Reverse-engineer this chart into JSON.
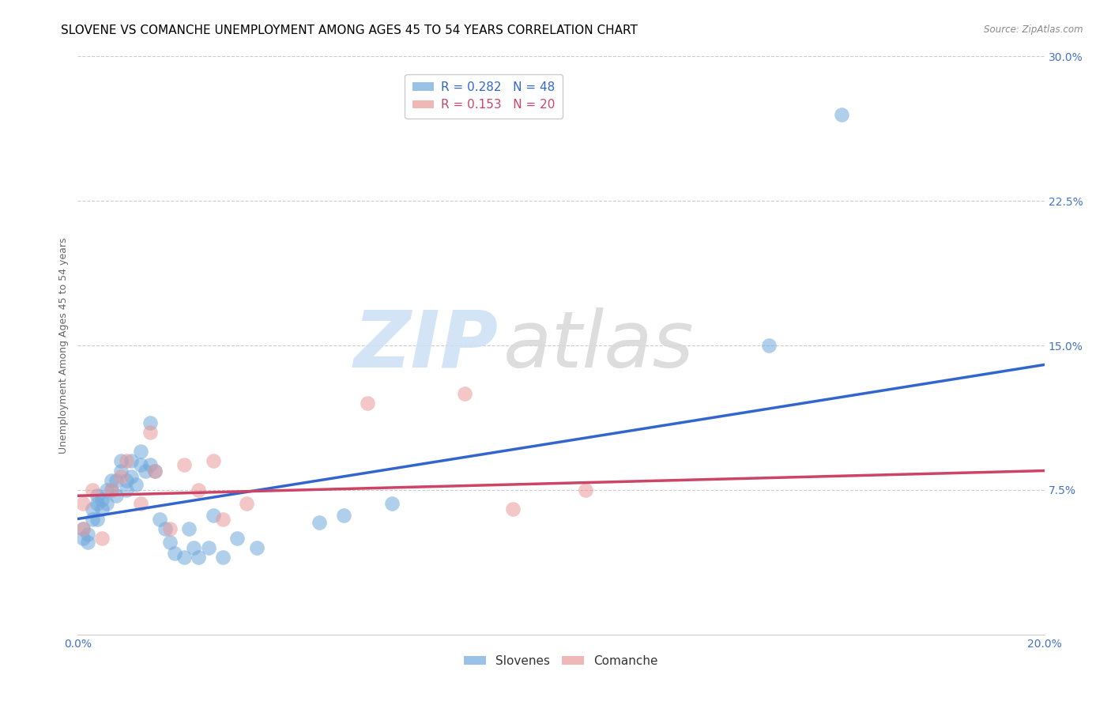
{
  "title": "SLOVENE VS COMANCHE UNEMPLOYMENT AMONG AGES 45 TO 54 YEARS CORRELATION CHART",
  "source": "Source: ZipAtlas.com",
  "ylabel": "Unemployment Among Ages 45 to 54 years",
  "xlim": [
    0.0,
    0.2
  ],
  "ylim": [
    0.0,
    0.3
  ],
  "xticks": [
    0.0,
    0.04,
    0.08,
    0.12,
    0.16,
    0.2
  ],
  "xtick_labels": [
    "0.0%",
    "",
    "",
    "",
    "",
    "20.0%"
  ],
  "yticks": [
    0.0,
    0.075,
    0.15,
    0.225,
    0.3
  ],
  "ytick_labels": [
    "",
    "7.5%",
    "15.0%",
    "22.5%",
    "30.0%"
  ],
  "grid_yticks": [
    0.075,
    0.15,
    0.225,
    0.3
  ],
  "slovene_color": "#6fa8dc",
  "comanche_color": "#ea9999",
  "trend_slovene_color": "#3366cc",
  "trend_comanche_color": "#cc4466",
  "R_slovene": 0.282,
  "N_slovene": 48,
  "R_comanche": 0.153,
  "N_comanche": 20,
  "slovene_x": [
    0.001,
    0.001,
    0.002,
    0.002,
    0.003,
    0.003,
    0.004,
    0.004,
    0.004,
    0.005,
    0.005,
    0.006,
    0.006,
    0.007,
    0.007,
    0.008,
    0.008,
    0.009,
    0.009,
    0.01,
    0.01,
    0.011,
    0.011,
    0.012,
    0.013,
    0.013,
    0.014,
    0.015,
    0.015,
    0.016,
    0.017,
    0.018,
    0.019,
    0.02,
    0.022,
    0.023,
    0.024,
    0.025,
    0.027,
    0.028,
    0.03,
    0.033,
    0.037,
    0.05,
    0.055,
    0.065,
    0.143,
    0.158
  ],
  "slovene_y": [
    0.055,
    0.05,
    0.052,
    0.048,
    0.06,
    0.065,
    0.06,
    0.068,
    0.072,
    0.07,
    0.065,
    0.075,
    0.068,
    0.075,
    0.08,
    0.08,
    0.072,
    0.085,
    0.09,
    0.075,
    0.08,
    0.09,
    0.082,
    0.078,
    0.088,
    0.095,
    0.085,
    0.11,
    0.088,
    0.085,
    0.06,
    0.055,
    0.048,
    0.042,
    0.04,
    0.055,
    0.045,
    0.04,
    0.045,
    0.062,
    0.04,
    0.05,
    0.045,
    0.058,
    0.062,
    0.068,
    0.15,
    0.27
  ],
  "comanche_x": [
    0.001,
    0.001,
    0.003,
    0.005,
    0.007,
    0.009,
    0.01,
    0.013,
    0.015,
    0.016,
    0.019,
    0.022,
    0.025,
    0.028,
    0.03,
    0.035,
    0.06,
    0.08,
    0.09,
    0.105
  ],
  "comanche_y": [
    0.068,
    0.055,
    0.075,
    0.05,
    0.075,
    0.082,
    0.09,
    0.068,
    0.105,
    0.085,
    0.055,
    0.088,
    0.075,
    0.09,
    0.06,
    0.068,
    0.12,
    0.125,
    0.065,
    0.075
  ],
  "watermark_zip": "ZIP",
  "watermark_atlas": "atlas",
  "title_fontsize": 11,
  "label_fontsize": 9,
  "tick_fontsize": 10,
  "legend_fontsize": 11
}
